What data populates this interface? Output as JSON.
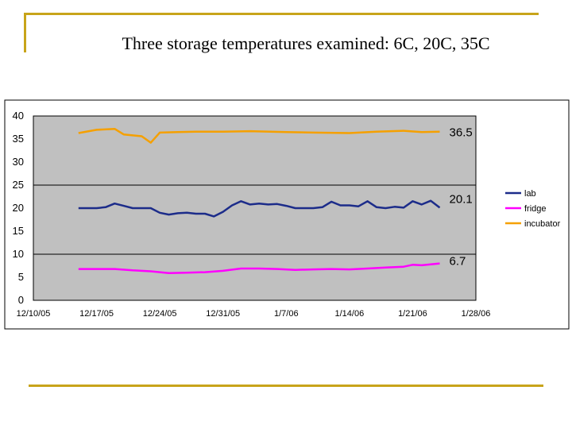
{
  "slide": {
    "title": "Three storage temperatures examined:  6C, 20C, 35C"
  },
  "colors": {
    "lab": "#1c2c8a",
    "fridge": "#ff00ff",
    "incubator": "#f5a000",
    "plot_bg": "#c0c0c0"
  },
  "chart_data": {
    "type": "line",
    "title": "",
    "xlabel": "",
    "ylabel": "",
    "xlim": [
      "12/10/05",
      "1/28/06"
    ],
    "ylim": [
      0,
      40
    ],
    "x_ticks": [
      "12/10/05",
      "12/17/05",
      "12/24/05",
      "12/31/05",
      "1/7/06",
      "1/14/06",
      "1/21/06",
      "1/28/06"
    ],
    "y_ticks": [
      0,
      5,
      10,
      15,
      20,
      25,
      30,
      35,
      40
    ],
    "grid": "horizontal lines at 10, 25, 40",
    "legend": "right",
    "series": [
      {
        "name": "lab",
        "label": "20.1",
        "x": [
          "12/15/05",
          "12/17/05",
          "12/18/05",
          "12/19/05",
          "12/20/05",
          "12/21/05",
          "12/22/05",
          "12/23/05",
          "12/24/05",
          "12/25/05",
          "12/26/05",
          "12/27/05",
          "12/28/05",
          "12/29/05",
          "12/30/05",
          "12/31/05",
          "1/1/06",
          "1/2/06",
          "1/3/06",
          "1/4/06",
          "1/5/06",
          "1/6/06",
          "1/7/06",
          "1/8/06",
          "1/10/06",
          "1/11/06",
          "1/12/06",
          "1/13/06",
          "1/14/06",
          "1/15/06",
          "1/16/06",
          "1/17/06",
          "1/18/06",
          "1/19/06",
          "1/20/06",
          "1/21/06",
          "1/22/06",
          "1/23/06",
          "1/24/06"
        ],
        "y": [
          20.0,
          20.0,
          20.2,
          21.0,
          20.5,
          20.0,
          20.0,
          20.0,
          19.0,
          18.6,
          18.9,
          19.0,
          18.8,
          18.8,
          18.2,
          19.2,
          20.6,
          21.5,
          20.8,
          21.0,
          20.8,
          20.9,
          20.5,
          20.0,
          20.0,
          20.2,
          21.4,
          20.6,
          20.6,
          20.4,
          21.5,
          20.2,
          20.0,
          20.3,
          20.1,
          21.5,
          20.8,
          21.6,
          20.1
        ]
      },
      {
        "name": "fridge",
        "label": "6.7",
        "x": [
          "12/15/05",
          "12/17/05",
          "12/19/05",
          "12/21/05",
          "12/23/05",
          "12/25/05",
          "12/27/05",
          "12/29/05",
          "12/31/05",
          "1/2/06",
          "1/4/06",
          "1/6/06",
          "1/8/06",
          "1/10/06",
          "1/12/06",
          "1/14/06",
          "1/16/06",
          "1/18/06",
          "1/20/06",
          "1/21/06",
          "1/22/06",
          "1/24/06"
        ],
        "y": [
          6.8,
          6.8,
          6.8,
          6.5,
          6.3,
          5.9,
          6.0,
          6.1,
          6.4,
          6.9,
          6.9,
          6.8,
          6.6,
          6.7,
          6.8,
          6.7,
          6.9,
          7.1,
          7.3,
          7.7,
          7.6,
          8.0
        ]
      },
      {
        "name": "incubator",
        "label": "36.5",
        "x": [
          "12/15/05",
          "12/17/05",
          "12/19/05",
          "12/20/05",
          "12/21/05",
          "12/22/05",
          "12/23/05",
          "12/24/05",
          "12/26/05",
          "12/28/05",
          "12/31/05",
          "1/3/06",
          "1/7/06",
          "1/10/06",
          "1/14/06",
          "1/17/06",
          "1/20/06",
          "1/22/06",
          "1/24/06"
        ],
        "y": [
          36.3,
          37.0,
          37.2,
          36.0,
          35.8,
          35.6,
          34.2,
          36.4,
          36.5,
          36.6,
          36.6,
          36.7,
          36.5,
          36.4,
          36.3,
          36.6,
          36.8,
          36.5,
          36.6
        ]
      }
    ]
  }
}
